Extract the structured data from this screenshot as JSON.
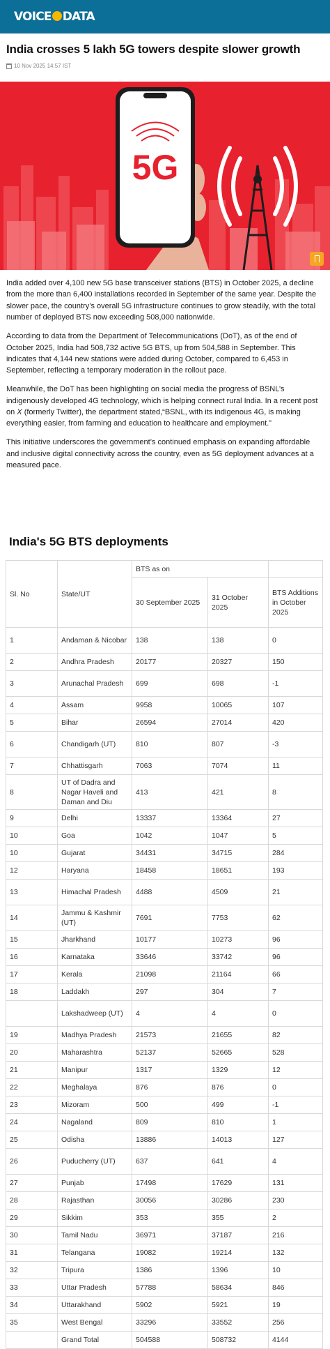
{
  "site": {
    "logo_left": "VOICE",
    "logo_right": "DATA"
  },
  "article": {
    "headline": "India crosses 5 lakh 5G towers despite slower growth",
    "date": "10 Nov 2025 14:57 IST",
    "hero_text": "5G",
    "paragraphs": [
      "India added over 4,100 new 5G base transceiver stations (BTS) in October 2025, a decline from the more than 6,400 installations recorded in September of the same year. Despite the slower pace, the country’s overall 5G infrastructure continues to grow steadily, with the total number of deployed BTS now exceeding 508,000 nationwide.",
      "According to data from the Department of Telecommunications (DoT), as of the end of October 2025, India had 508,732 active 5G BTS, up from 504,588 in September. This indicates that 4,144 new stations were added during October, compared to 6,453 in September, reflecting a temporary moderation in the rollout pace."
    ],
    "p3_before": "Meanwhile, the DoT has been highlighting on social media the progress of BSNL’s indigenously developed 4G technology, which is helping connect rural India. In a recent post on ",
    "p3_italic": "X",
    "p3_after": " (formerly Twitter), the department stated,“BSNL, with its indigenous 4G, is making everything easier, from farming and education to healthcare and employment.”",
    "p4": "This initiative underscores the government’s continued emphasis on expanding affordable and inclusive digital connectivity across the country, even as 5G deployment advances at a measured pace."
  },
  "table": {
    "title": "India's 5G BTS deployments",
    "headers": {
      "sl_no": "Sl. No",
      "state": "State/UT",
      "bts_as_on": "BTS as on",
      "sep": "30 September 2025",
      "oct": "31 October 2025",
      "additions": "BTS Additions in October 2025"
    },
    "rows": [
      {
        "sl": "1",
        "state": "Andaman & Nicobar",
        "sep": "138",
        "oct": "138",
        "add": "0"
      },
      {
        "sl": "2",
        "state": "Andhra Pradesh",
        "sep": "20177",
        "oct": "20327",
        "add": "150"
      },
      {
        "sl": "3",
        "state": "Arunachal Pradesh",
        "sep": "699",
        "oct": "698",
        "add": "-1"
      },
      {
        "sl": "4",
        "state": "Assam",
        "sep": "9958",
        "oct": "10065",
        "add": "107"
      },
      {
        "sl": "5",
        "state": "Bihar",
        "sep": "26594",
        "oct": "27014",
        "add": "420"
      },
      {
        "sl": "6",
        "state": "Chandigarh (UT)",
        "sep": "810",
        "oct": "807",
        "add": "-3"
      },
      {
        "sl": "7",
        "state": "Chhattisgarh",
        "sep": "7063",
        "oct": "7074",
        "add": "11"
      },
      {
        "sl": "8",
        "state": "UT of Dadra and Nagar Haveli and Daman and Diu",
        "sep": "413",
        "oct": "421",
        "add": "8"
      },
      {
        "sl": "9",
        "state": "Delhi",
        "sep": "13337",
        "oct": "13364",
        "add": "27"
      },
      {
        "sl": "10",
        "state": "Goa",
        "sep": "1042",
        "oct": "1047",
        "add": "5"
      },
      {
        "sl": "10",
        "state": "Gujarat",
        "sep": "34431",
        "oct": "34715",
        "add": "284"
      },
      {
        "sl": "12",
        "state": "Haryana",
        "sep": "18458",
        "oct": "18651",
        "add": "193"
      },
      {
        "sl": "13",
        "state": "Himachal Pradesh",
        "sep": "4488",
        "oct": "4509",
        "add": "21"
      },
      {
        "sl": "14",
        "state": "Jammu & Kashmir (UT)",
        "sep": "7691",
        "oct": "7753",
        "add": "62"
      },
      {
        "sl": "15",
        "state": "Jharkhand",
        "sep": "10177",
        "oct": "10273",
        "add": "96"
      },
      {
        "sl": "16",
        "state": "Karnataka",
        "sep": "33646",
        "oct": "33742",
        "add": "96"
      },
      {
        "sl": "17",
        "state": "Kerala",
        "sep": "21098",
        "oct": "21164",
        "add": "66"
      },
      {
        "sl": "18",
        "state": "Laddakh",
        "sep": "297",
        "oct": "304",
        "add": "7"
      },
      {
        "sl": "",
        "state": "Lakshadweep (UT)",
        "sep": "4",
        "oct": "4",
        "add": "0"
      },
      {
        "sl": "19",
        "state": "Madhya Pradesh",
        "sep": "21573",
        "oct": "21655",
        "add": "82"
      },
      {
        "sl": "20",
        "state": "Maharashtra",
        "sep": "52137",
        "oct": "52665",
        "add": "528"
      },
      {
        "sl": "21",
        "state": "Manipur",
        "sep": "1317",
        "oct": "1329",
        "add": "12"
      },
      {
        "sl": "22",
        "state": "Meghalaya",
        "sep": "876",
        "oct": "876",
        "add": "0"
      },
      {
        "sl": "23",
        "state": "Mizoram",
        "sep": "500",
        "oct": "499",
        "add": "-1"
      },
      {
        "sl": "24",
        "state": "Nagaland",
        "sep": "809",
        "oct": "810",
        "add": "1"
      },
      {
        "sl": "25",
        "state": "Odisha",
        "sep": "13886",
        "oct": "14013",
        "add": "127"
      },
      {
        "sl": "26",
        "state": "Puducherry (UT)",
        "sep": "637",
        "oct": "641",
        "add": "4"
      },
      {
        "sl": "27",
        "state": "Punjab",
        "sep": "17498",
        "oct": "17629",
        "add": "131"
      },
      {
        "sl": "28",
        "state": "Rajasthan",
        "sep": "30056",
        "oct": "30286",
        "add": "230"
      },
      {
        "sl": "29",
        "state": "Sikkim",
        "sep": "353",
        "oct": "355",
        "add": "2"
      },
      {
        "sl": "30",
        "state": "Tamil Nadu",
        "sep": "36971",
        "oct": "37187",
        "add": "216"
      },
      {
        "sl": "31",
        "state": "Telangana",
        "sep": "19082",
        "oct": "19214",
        "add": "132"
      },
      {
        "sl": "32",
        "state": "Tripura",
        "sep": "1386",
        "oct": "1396",
        "add": "10"
      },
      {
        "sl": "33",
        "state": "Uttar Pradesh",
        "sep": "57788",
        "oct": "58634",
        "add": "846"
      },
      {
        "sl": "34",
        "state": "Uttarakhand",
        "sep": "5902",
        "oct": "5921",
        "add": "19"
      },
      {
        "sl": "35",
        "state": "West Bengal",
        "sep": "33296",
        "oct": "33552",
        "add": "256"
      }
    ],
    "total": {
      "sl": "",
      "state": "Grand Total",
      "sep": "504588",
      "oct": "508732",
      "add": "4144"
    }
  },
  "colors": {
    "topbar": "#0c6f97",
    "hero_red": "#e8212e",
    "logo_accent": "#f5b700",
    "bookmark": "#f5a623"
  },
  "icons": [
    "calendar-icon",
    "bookmark-icon",
    "signal-waves-icon",
    "tower-icon"
  ]
}
